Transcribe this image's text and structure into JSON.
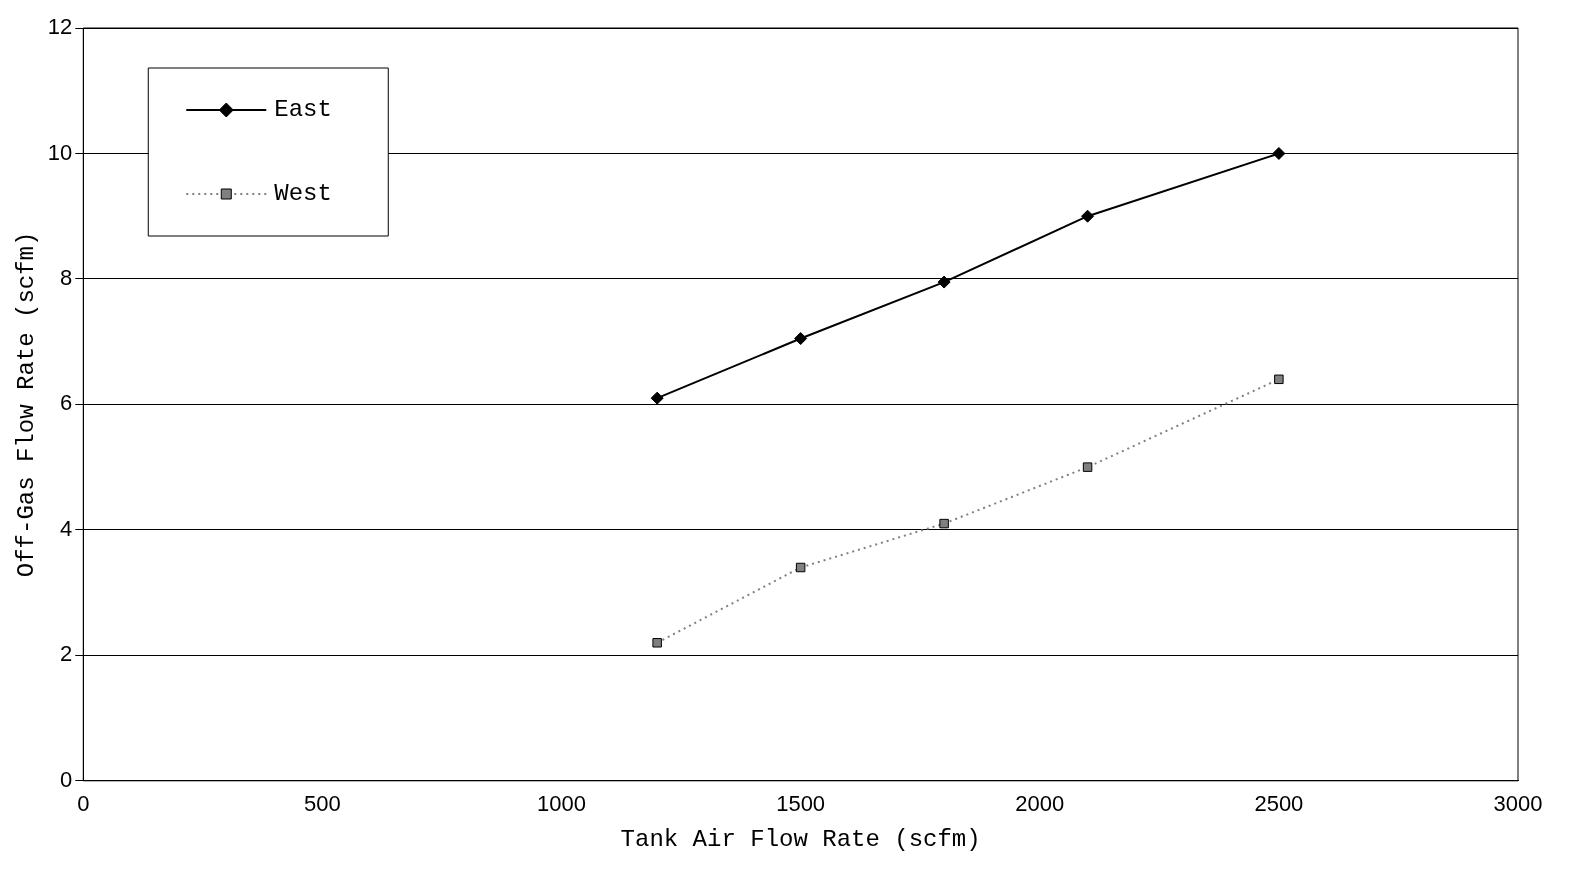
{
  "chart_data": {
    "type": "line",
    "xlabel": "Tank Air Flow Rate (scfm)",
    "ylabel": "Off-Gas Flow Rate (scfm)",
    "xlim": [
      0,
      3000
    ],
    "xticks": [
      0,
      500,
      1000,
      1500,
      2000,
      2500,
      3000
    ],
    "ylim": [
      0,
      12
    ],
    "yticks": [
      0,
      2,
      4,
      6,
      8,
      10,
      12
    ],
    "grid": "y",
    "legend": "top left",
    "series": [
      {
        "name": "East",
        "color": "#000000",
        "marker": "diamond",
        "line_style": "solid",
        "x": [
          1200,
          1500,
          1800,
          2100,
          2500
        ],
        "values": [
          6.1,
          7.05,
          7.95,
          9.0,
          10.0
        ]
      },
      {
        "name": "West",
        "color": "#808080",
        "marker": "square",
        "line_style": "dotted",
        "x": [
          1200,
          1500,
          1800,
          2100,
          2500
        ],
        "values": [
          2.2,
          3.4,
          4.1,
          5.0,
          6.4
        ]
      }
    ]
  }
}
